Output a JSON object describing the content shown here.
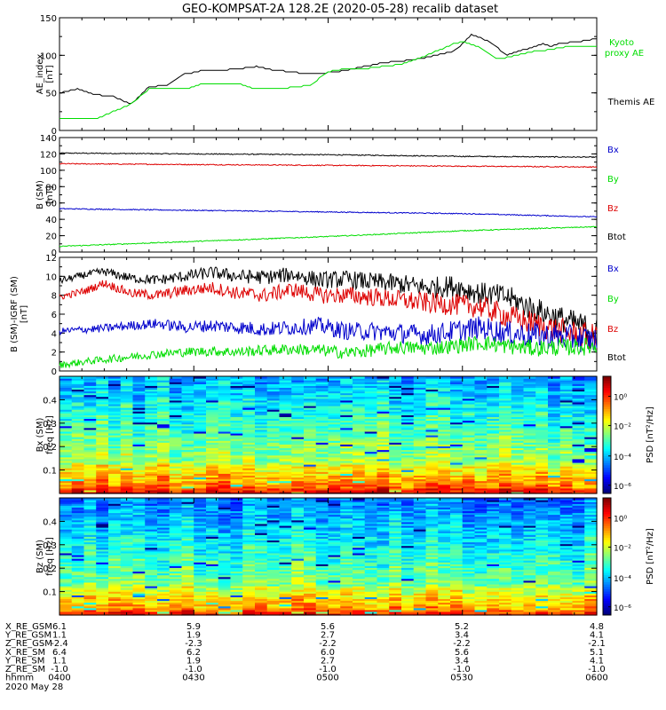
{
  "title": "GEO-KOMPSAT-2A 128.2E (2020-05-28) recalib dataset",
  "colors": {
    "black": "#000000",
    "green": "#00dd00",
    "red": "#dd0000",
    "blue": "#0000cc"
  },
  "chart_data": [
    {
      "type": "line",
      "ylabel": "AE_index\n[nT]",
      "ylim": [
        0,
        150
      ],
      "yticks": [
        0,
        50,
        100,
        150
      ],
      "xlim": [
        0,
        120
      ],
      "series": [
        {
          "name": "Themis AE",
          "color": "black",
          "x": [
            0,
            4,
            8,
            12,
            16,
            20,
            24,
            26,
            28,
            32,
            36,
            40,
            44,
            48,
            52,
            56,
            60,
            64,
            68,
            72,
            76,
            80,
            84,
            88,
            90,
            92,
            96,
            100,
            104,
            108,
            110,
            112,
            116,
            120
          ],
          "y": [
            50,
            55,
            48,
            45,
            35,
            58,
            60,
            68,
            75,
            80,
            80,
            82,
            85,
            80,
            78,
            75,
            77,
            80,
            85,
            90,
            92,
            95,
            100,
            105,
            115,
            128,
            118,
            100,
            108,
            115,
            112,
            116,
            118,
            122
          ]
        },
        {
          "name": "Kyoto proxy AE",
          "color": "green",
          "x": [
            0,
            8,
            12,
            16,
            20,
            28,
            32,
            40,
            44,
            48,
            56,
            60,
            64,
            68,
            72,
            76,
            80,
            84,
            88,
            90,
            94,
            98,
            102,
            106,
            110,
            114,
            120
          ],
          "y": [
            15,
            15,
            25,
            35,
            55,
            55,
            62,
            62,
            55,
            55,
            60,
            78,
            82,
            82,
            85,
            88,
            95,
            105,
            115,
            118,
            110,
            95,
            100,
            105,
            108,
            112,
            112
          ]
        }
      ],
      "legend": [
        "Kyoto\nproxy AE",
        "Themis AE"
      ]
    },
    {
      "type": "line",
      "ylabel": "B (SM)\n[nT]",
      "ylim": [
        0,
        140
      ],
      "yticks": [
        0,
        20,
        40,
        60,
        80,
        100,
        120,
        140
      ],
      "xlim": [
        0,
        120
      ],
      "series": [
        {
          "name": "Btot",
          "color": "black",
          "x": [
            0,
            30,
            60,
            90,
            120
          ],
          "y": [
            121,
            120,
            119,
            117,
            116
          ]
        },
        {
          "name": "Bz",
          "color": "red",
          "x": [
            0,
            30,
            60,
            90,
            120
          ],
          "y": [
            108,
            107,
            106,
            105,
            104
          ]
        },
        {
          "name": "Bx",
          "color": "blue",
          "x": [
            0,
            30,
            60,
            90,
            120
          ],
          "y": [
            53,
            51,
            49,
            47,
            43
          ]
        },
        {
          "name": "By",
          "color": "green",
          "x": [
            0,
            30,
            60,
            90,
            120
          ],
          "y": [
            7,
            13,
            19,
            26,
            31
          ]
        }
      ],
      "legend": [
        "Bx",
        "By",
        "Bz",
        "Btot"
      ]
    },
    {
      "type": "line",
      "ylabel": "B (SM)-IGRF (SM)\n[nT]",
      "ylim": [
        0,
        12
      ],
      "yticks": [
        0,
        2,
        4,
        6,
        8,
        10,
        12
      ],
      "xlim": [
        0,
        120
      ],
      "series": [
        {
          "name": "Btot",
          "color": "black",
          "x": [
            0,
            6,
            10,
            16,
            22,
            28,
            34,
            40,
            46,
            52,
            58,
            64,
            70,
            76,
            82,
            88,
            94,
            100,
            106,
            112,
            120
          ],
          "y": [
            9.5,
            10.2,
            10.5,
            9.8,
            9.6,
            10.0,
            10.4,
            10.0,
            9.9,
            10.2,
            9.6,
            9.7,
            9.4,
            9.2,
            8.8,
            9.0,
            8.2,
            7.8,
            6.5,
            5.5,
            4.2
          ]
        },
        {
          "name": "Bz",
          "color": "red",
          "x": [
            0,
            6,
            10,
            16,
            22,
            28,
            34,
            40,
            46,
            52,
            58,
            64,
            70,
            76,
            82,
            88,
            94,
            100,
            106,
            112,
            120
          ],
          "y": [
            7.8,
            8.5,
            9.3,
            8.2,
            8.0,
            8.5,
            8.8,
            8.2,
            8.0,
            8.6,
            8.0,
            8.0,
            7.8,
            7.5,
            7.2,
            7.0,
            6.8,
            5.8,
            5.0,
            4.2,
            3.5
          ]
        },
        {
          "name": "Bx",
          "color": "blue",
          "x": [
            0,
            6,
            10,
            16,
            22,
            28,
            34,
            40,
            46,
            52,
            58,
            64,
            70,
            76,
            82,
            88,
            94,
            100,
            106,
            112,
            120
          ],
          "y": [
            4.2,
            4.4,
            4.5,
            4.8,
            5.0,
            4.6,
            4.8,
            4.6,
            4.4,
            4.6,
            4.8,
            4.2,
            4.2,
            4.0,
            3.8,
            4.2,
            4.6,
            4.0,
            3.8,
            3.6,
            3.2
          ]
        },
        {
          "name": "By",
          "color": "green",
          "x": [
            0,
            6,
            10,
            16,
            22,
            28,
            34,
            40,
            46,
            52,
            58,
            64,
            70,
            76,
            82,
            88,
            94,
            100,
            106,
            112,
            120
          ],
          "y": [
            0.6,
            1.0,
            1.2,
            1.5,
            1.8,
            2.0,
            2.1,
            2.0,
            2.2,
            2.3,
            2.2,
            1.9,
            2.2,
            2.5,
            2.4,
            2.6,
            3.0,
            2.6,
            2.4,
            2.5,
            2.6
          ]
        }
      ],
      "legend": [
        "Bx",
        "By",
        "Bz",
        "Btot"
      ]
    },
    {
      "type": "heatmap",
      "ylabel": "Bx (SM)\nfreq [Hz]",
      "yticks": [
        0.1,
        0.2,
        0.3,
        0.4
      ],
      "ylim": [
        0,
        0.5
      ],
      "colorbar_label": "PSD [nT²/Hz]",
      "colorbar_ticks": [
        "10⁰",
        "10⁻²",
        "10⁻⁴",
        "10⁻⁶"
      ]
    },
    {
      "type": "heatmap",
      "ylabel": "Bz (SM)\nfreq [Hz]",
      "yticks": [
        0.1,
        0.2,
        0.3,
        0.4
      ],
      "ylim": [
        0,
        0.5
      ],
      "colorbar_label": "PSD [nT²/Hz]",
      "colorbar_ticks": [
        "10⁰",
        "10⁻²",
        "10⁻⁴",
        "10⁻⁶"
      ]
    }
  ],
  "ephemeris": {
    "rows": [
      {
        "label": "X_RE_GSM",
        "values": [
          "6.1",
          "5.9",
          "5.6",
          "5.2",
          "4.8"
        ]
      },
      {
        "label": "Y_RE_GSM",
        "values": [
          "1.1",
          "1.9",
          "2.7",
          "3.4",
          "4.1"
        ]
      },
      {
        "label": "Z_RE_GSM",
        "values": [
          "-2.4",
          "-2.3",
          "-2.2",
          "-2.2",
          "-2.1"
        ]
      },
      {
        "label": "X_RE_SM",
        "values": [
          "6.4",
          "6.2",
          "6.0",
          "5.6",
          "5.1"
        ]
      },
      {
        "label": "Y_RE_SM",
        "values": [
          "1.1",
          "1.9",
          "2.7",
          "3.4",
          "4.1"
        ]
      },
      {
        "label": "Z_RE_SM",
        "values": [
          "-1.0",
          "-1.0",
          "-1.0",
          "-1.0",
          "-1.0"
        ]
      },
      {
        "label": "hhmm",
        "values": [
          "0400",
          "0430",
          "0500",
          "0530",
          "0600"
        ]
      }
    ],
    "date": "2020 May 28"
  }
}
